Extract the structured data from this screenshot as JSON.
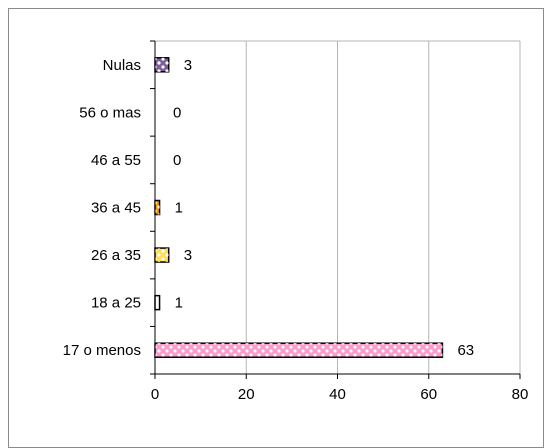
{
  "chart_data": {
    "type": "bar",
    "orientation": "horizontal",
    "categories": [
      "17 o menos",
      "18 a 25",
      "26 a 35",
      "36 a 45",
      "46 a 55",
      "56 o mas",
      "Nulas"
    ],
    "values": [
      63,
      1,
      3,
      1,
      0,
      0,
      3
    ],
    "value_labels": [
      "63",
      "1",
      "3",
      "1",
      "0",
      "0",
      "3"
    ],
    "xlim": [
      0,
      80
    ],
    "x_ticks": [
      "0",
      "20",
      "40",
      "60",
      "80"
    ],
    "x_tick_values": [
      0,
      20,
      40,
      60,
      80
    ],
    "grid": "vertical",
    "legend": "none",
    "title": "",
    "xlabel": "",
    "ylabel": "",
    "bar_colors": [
      "#ff99cc",
      "#ffffff",
      "#ffdd55",
      "#ff9900",
      "#ffffff",
      "#ffffff",
      "#7a5f9a"
    ],
    "grid_color": "#b5b5b5",
    "axis_color": "#000000"
  }
}
